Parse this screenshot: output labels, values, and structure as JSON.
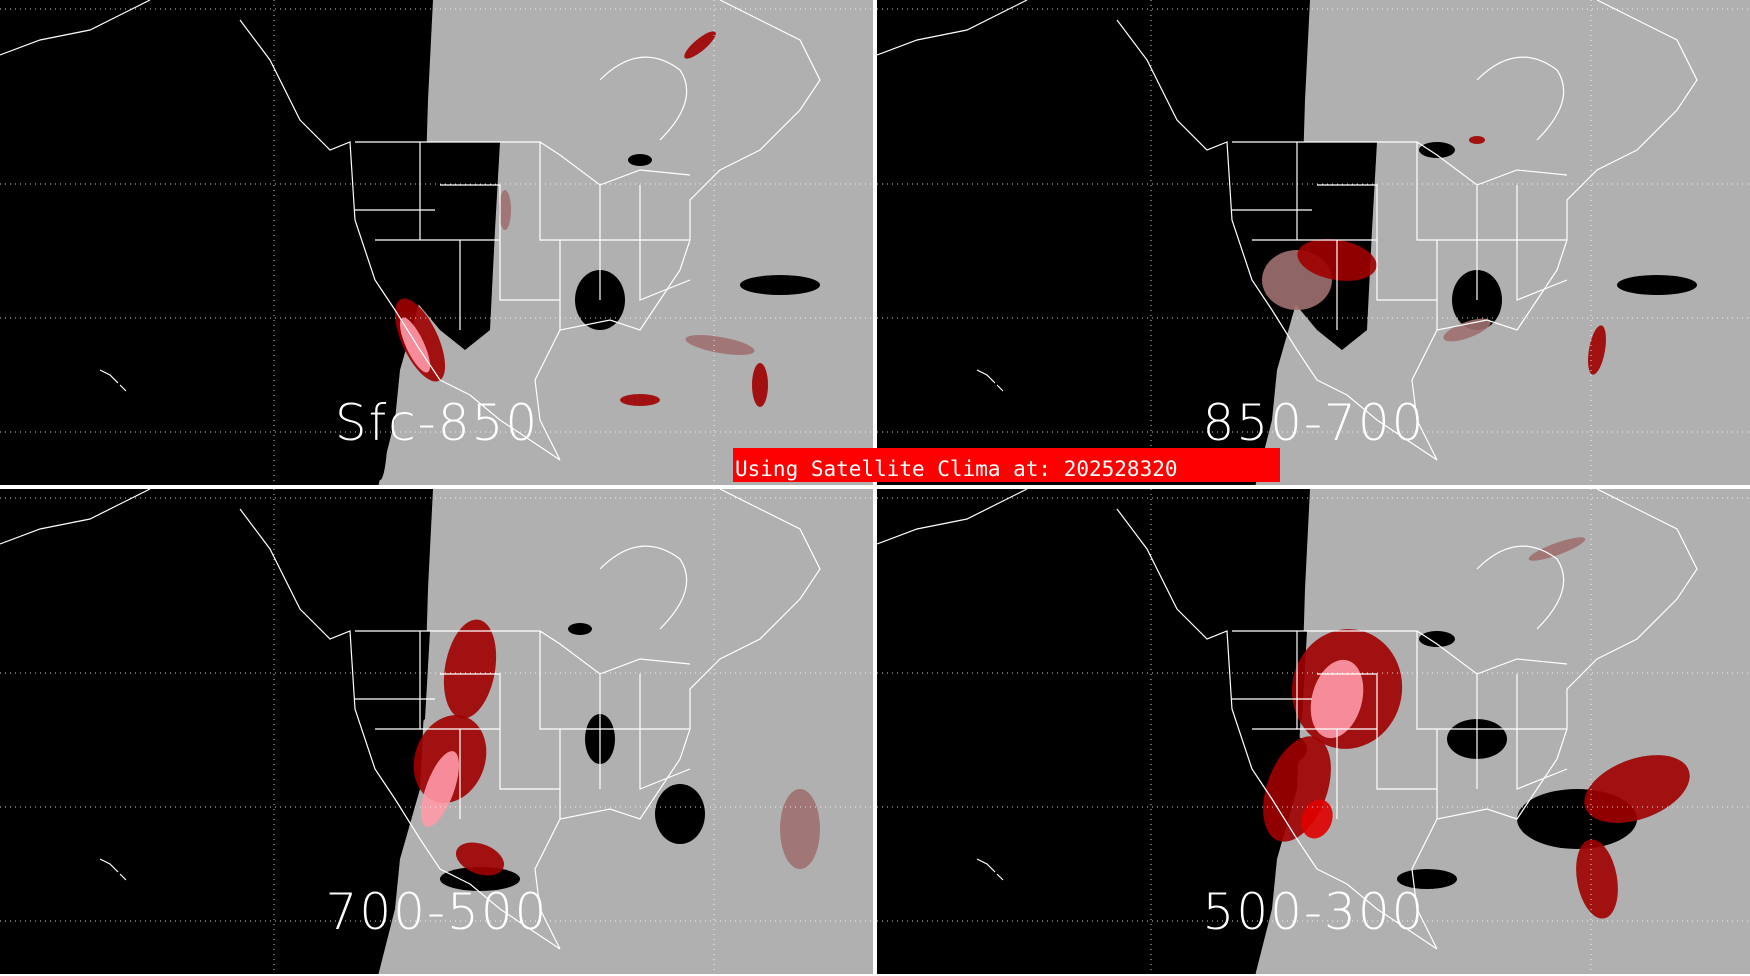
{
  "banner": {
    "text": "Using Satellite Clima at: 202528320",
    "color": "#ff0000"
  },
  "panels": [
    {
      "label": "Sfc-850"
    },
    {
      "label": "850-700"
    },
    {
      "label": "700-500"
    },
    {
      "label": "500-300"
    }
  ],
  "colors": {
    "land_coverage": "#b0b0b0",
    "no_data": "#000000",
    "outline": "#ffffff",
    "dark_red": "#a00000",
    "red": "#e00000",
    "pink": "#ff9aa8",
    "brown": "#a07070"
  }
}
